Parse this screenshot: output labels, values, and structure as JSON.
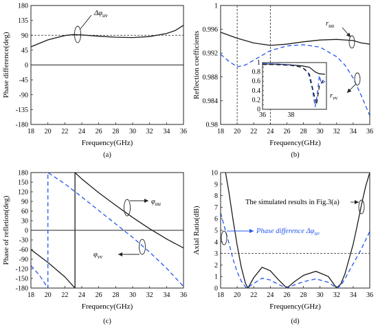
{
  "chart_data": [
    {
      "type": "line",
      "caption": "(a)",
      "xlabel": "Frequency(GHz)",
      "ylabel": "Phase difference(deg)",
      "xlim": [
        18,
        36
      ],
      "ylim": [
        -180,
        180
      ],
      "xticks": [
        18,
        20,
        22,
        24,
        26,
        28,
        30,
        32,
        34,
        36
      ],
      "yticks": [
        -180,
        -135,
        -90,
        -45,
        0,
        45,
        90,
        135,
        180
      ],
      "annotations": [
        {
          "text": "Δφ",
          "sub": "uv"
        }
      ],
      "reference_lines": {
        "horizontal_dashed": 90,
        "horizontal_solid": 0
      },
      "series": [
        {
          "color": "#1a1a1a",
          "style": "solid",
          "x": [
            18,
            20,
            22,
            23,
            24,
            26,
            28,
            30,
            32,
            34,
            35,
            36
          ],
          "y": [
            55,
            76,
            89,
            92,
            91,
            87,
            84,
            83,
            86,
            95,
            104,
            120
          ]
        }
      ]
    },
    {
      "type": "line",
      "caption": "(b)",
      "xlabel": "Frequency(GHz)",
      "ylabel": "Reflection coefficients",
      "xlim": [
        18,
        36
      ],
      "ylim": [
        0.98,
        1
      ],
      "xticks": [
        18,
        20,
        22,
        24,
        26,
        28,
        30,
        32,
        34,
        36
      ],
      "yticks": [
        "0.98",
        "0.984",
        "0.988",
        "0.992",
        "0.996",
        "1"
      ],
      "annotations": [
        {
          "text": "r",
          "sub": "uu"
        },
        {
          "text": "r",
          "sub": "vv"
        }
      ],
      "reference_lines": {
        "vertical_dashed": [
          20,
          24
        ]
      },
      "series": [
        {
          "color": "#1a1a1a",
          "style": "solid",
          "x": [
            18,
            20,
            22,
            24,
            26,
            28,
            30,
            32,
            34,
            35,
            36
          ],
          "y": [
            0.9955,
            0.9945,
            0.9937,
            0.9933,
            0.9935,
            0.9939,
            0.9942,
            0.9943,
            0.9941,
            0.9937,
            0.9935
          ]
        },
        {
          "color": "#2255ee",
          "style": "dashed",
          "x": [
            18,
            19,
            20,
            21,
            22,
            24,
            26,
            28,
            30,
            32,
            33,
            34,
            35,
            36
          ],
          "y": [
            0.9918,
            0.9906,
            0.9897,
            0.99,
            0.9908,
            0.9924,
            0.9932,
            0.9934,
            0.993,
            0.9914,
            0.99,
            0.9878,
            0.9848,
            0.9815
          ]
        }
      ],
      "inset": {
        "xlim": [
          36,
          40.5
        ],
        "ylim": [
          0,
          1
        ],
        "xticks": [
          36,
          38
        ],
        "yticks": [
          "0",
          "0.1",
          "0.2",
          "0.3",
          "0.4",
          "0.5",
          "0.6",
          "0.7",
          "0.8",
          "0.9",
          "1"
        ],
        "series": [
          {
            "color": "#1a1a1a",
            "style": "solid",
            "x": [
              36,
              37,
              38,
              38.8,
              39.3,
              39.7,
              40,
              40.4
            ],
            "y": [
              0.97,
              0.965,
              0.95,
              0.93,
              0.9,
              0.8,
              0.76,
              0.75
            ]
          },
          {
            "color": "#2255ee",
            "style": "dashed",
            "x": [
              36,
              37,
              38,
              38.8,
              39.2,
              39.5,
              39.7,
              39.85,
              40,
              40.15,
              40.4
            ],
            "y": [
              0.98,
              0.97,
              0.95,
              0.9,
              0.8,
              0.45,
              0.05,
              0.3,
              0.72,
              0.55,
              0.6
            ]
          },
          {
            "color": "#1a1a1a",
            "style": "dashed",
            "x": [
              36,
              37,
              38,
              38.8,
              39.3,
              39.6,
              39.8,
              40,
              40.4
            ],
            "y": [
              0.96,
              0.955,
              0.94,
              0.9,
              0.75,
              0.35,
              0.1,
              0.5,
              0.68
            ]
          }
        ]
      }
    },
    {
      "type": "line",
      "caption": "(c)",
      "xlabel": "Frequency(GHz)",
      "ylabel": "Phase of refletion(deg)",
      "xlim": [
        18,
        36
      ],
      "ylim": [
        -180,
        180
      ],
      "xticks": [
        18,
        20,
        22,
        24,
        26,
        28,
        30,
        32,
        34,
        36
      ],
      "yticks": [
        -180,
        -150,
        -120,
        -90,
        -60,
        -30,
        0,
        30,
        60,
        90,
        120,
        150,
        180
      ],
      "annotations": [
        {
          "text": "φ",
          "sub": "uu"
        },
        {
          "text": "φ",
          "sub": "vv"
        }
      ],
      "reference_lines": {
        "horizontal_solid": 0
      },
      "series": [
        {
          "color": "#1a1a1a",
          "style": "solid",
          "x": [
            18,
            20,
            22,
            23.2,
            23.2,
            24,
            26,
            28,
            30,
            32,
            34,
            36
          ],
          "y": [
            -60,
            -100,
            -145,
            -180,
            180,
            160,
            117,
            78,
            40,
            5,
            -27,
            -55
          ]
        },
        {
          "color": "#2255ee",
          "style": "dashed",
          "x": [
            18,
            19,
            20,
            20,
            22,
            24,
            26,
            28,
            30,
            32,
            34,
            36
          ],
          "y": [
            -110,
            -140,
            -180,
            180,
            145,
            104,
            62,
            20,
            -22,
            -68,
            -118,
            -175
          ]
        }
      ]
    },
    {
      "type": "line",
      "caption": "(d)",
      "xlabel": "Frequency(GHz)",
      "ylabel": "Axial Ratio(dB)",
      "xlim": [
        18,
        36
      ],
      "ylim": [
        0,
        10
      ],
      "xticks": [
        18,
        20,
        22,
        24,
        26,
        28,
        30,
        32,
        34,
        36
      ],
      "yticks": [
        0,
        1,
        2,
        3,
        4,
        5,
        6,
        7,
        8,
        9,
        10
      ],
      "annotations": [
        {
          "text": "The simulated results in Fig.3(a)"
        },
        {
          "text": "Phase difference Δφ",
          "sub": "uv"
        }
      ],
      "reference_lines": {
        "horizontal_dashed": 3
      },
      "series": [
        {
          "color": "#1a1a1a",
          "style": "solid",
          "x": [
            18.6,
            19,
            19.5,
            20,
            20.5,
            21,
            21.3,
            22,
            23,
            24,
            25,
            26,
            27,
            28,
            29.5,
            31,
            32,
            32.5,
            33,
            34,
            34.6,
            35,
            35.5,
            36
          ],
          "y": [
            10,
            8.3,
            5.9,
            3.7,
            1.8,
            0.4,
            0,
            0.9,
            1.8,
            1.5,
            0.7,
            0,
            0.6,
            1.1,
            1.45,
            1,
            0,
            0.35,
            1.2,
            3.8,
            5.8,
            7.2,
            8.8,
            10
          ]
        },
        {
          "color": "#2255ee",
          "style": "dashed",
          "x": [
            18,
            18.5,
            19,
            19.5,
            20,
            20.5,
            21,
            21.2,
            22,
            23,
            24,
            25,
            26,
            27,
            28,
            29.5,
            31,
            32,
            32.5,
            33,
            34,
            35,
            36
          ],
          "y": [
            6.5,
            5.2,
            3.9,
            2.5,
            1.4,
            0.6,
            0.1,
            0,
            0.4,
            0.85,
            0.7,
            0.3,
            0,
            0.3,
            0.55,
            0.8,
            0.5,
            0,
            0.2,
            0.8,
            2.1,
            3.4,
            4.9
          ]
        }
      ]
    }
  ]
}
